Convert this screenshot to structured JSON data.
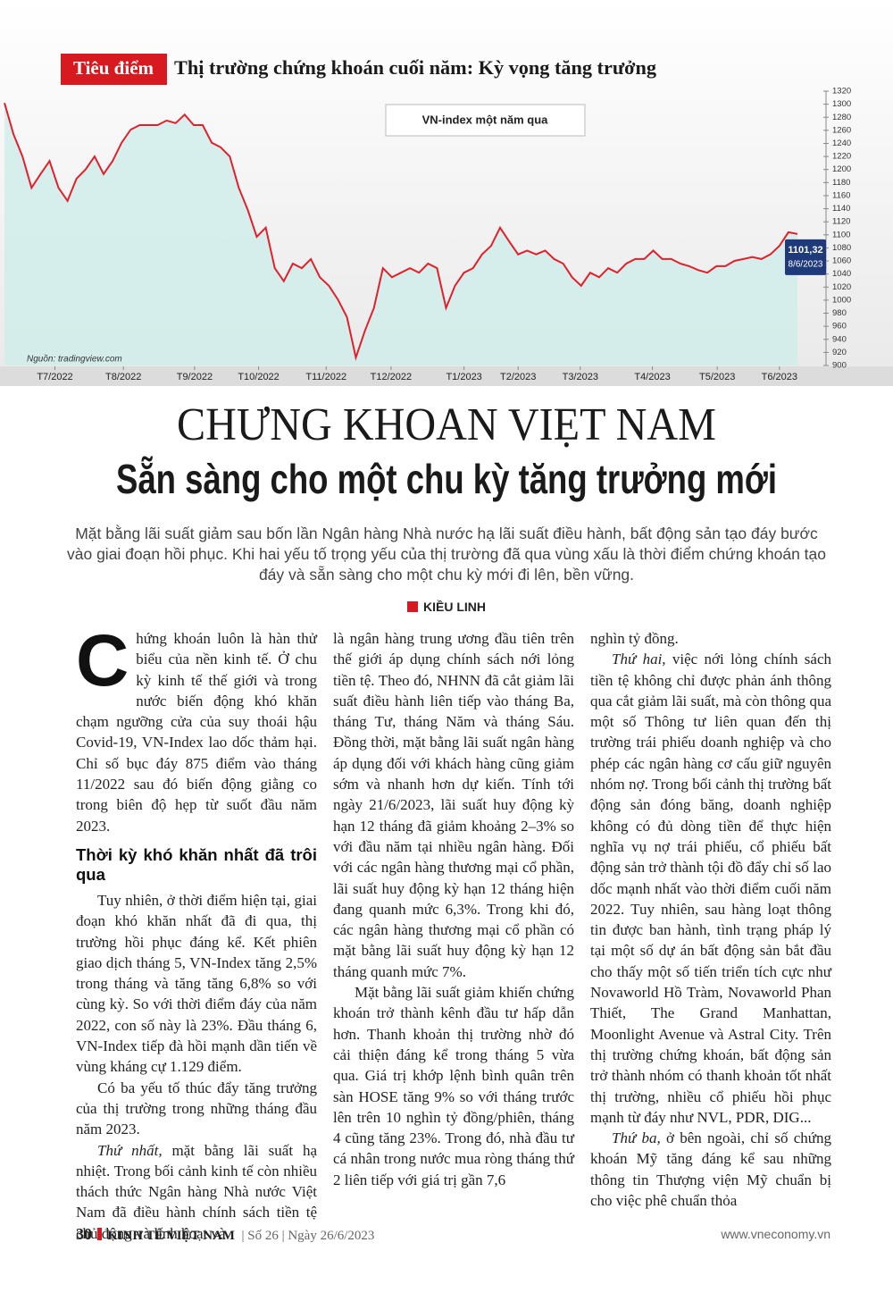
{
  "header": {
    "section": "Tiêu điểm",
    "title": "Thị trường chứng khoán cuối năm: Kỳ vọng tăng trưởng"
  },
  "chart_data": {
    "type": "line",
    "title": "VN-index một năm qua",
    "source": "Nguồn: tradingview.com",
    "color": "#e0202a",
    "area_color": "#cfeeea",
    "ylim": [
      900,
      1320
    ],
    "yticks": [
      900,
      920,
      940,
      960,
      980,
      1000,
      1020,
      1040,
      1060,
      1080,
      1100,
      1120,
      1140,
      1160,
      1180,
      1200,
      1220,
      1240,
      1260,
      1280,
      1300,
      1320
    ],
    "xlim": [
      0,
      88
    ],
    "xticks": [
      {
        "value": 5.6,
        "label": "T7/2022"
      },
      {
        "value": 13.2,
        "label": "T8/2022"
      },
      {
        "value": 21.1,
        "label": "T9/2022"
      },
      {
        "value": 28.2,
        "label": "T10/2022"
      },
      {
        "value": 35.7,
        "label": "T11/2022"
      },
      {
        "value": 42.9,
        "label": "T12/2022"
      },
      {
        "value": 51,
        "label": "T1/2023"
      },
      {
        "value": 57,
        "label": "T2/2023"
      },
      {
        "value": 63.9,
        "label": "T3/2023"
      },
      {
        "value": 71.9,
        "label": "T4/2023"
      },
      {
        "value": 79.1,
        "label": "T5/2023"
      },
      {
        "value": 86,
        "label": "T6/2023"
      }
    ],
    "values": [
      1302,
      1254,
      1220,
      1172,
      1193,
      1213,
      1172,
      1152,
      1186,
      1200,
      1220,
      1193,
      1213,
      1241,
      1261,
      1268,
      1268,
      1268,
      1275,
      1271,
      1284,
      1268,
      1268,
      1241,
      1234,
      1220,
      1172,
      1138,
      1097,
      1111,
      1049,
      1029,
      1056,
      1049,
      1063,
      1035,
      1022,
      1001,
      974,
      912,
      953,
      988,
      1049,
      1035,
      1042,
      1049,
      1042,
      1056,
      1049,
      988,
      1022,
      1042,
      1049,
      1070,
      1083,
      1111,
      1090,
      1070,
      1076,
      1070,
      1076,
      1063,
      1056,
      1035,
      1022,
      1042,
      1035,
      1049,
      1042,
      1056,
      1063,
      1063,
      1076,
      1063,
      1063,
      1056,
      1052,
      1046,
      1042,
      1052,
      1052,
      1060,
      1063,
      1066,
      1063,
      1070,
      1083,
      1104,
      1101.32
    ],
    "value_labels": [
      null,
      null,
      null,
      null,
      null,
      null,
      null,
      null,
      null,
      null,
      null,
      null,
      null,
      null,
      null,
      null,
      null,
      null,
      null,
      null,
      null,
      null,
      null,
      null,
      null,
      null,
      null,
      null,
      null,
      null,
      null,
      null,
      null,
      null,
      null,
      null,
      null,
      null,
      null,
      null,
      null,
      null,
      null,
      null,
      null,
      null,
      null,
      null,
      null,
      null,
      null,
      null,
      null,
      null,
      null,
      null,
      null,
      null,
      null,
      null,
      null,
      null,
      null,
      null,
      null,
      null,
      null,
      null,
      null,
      null,
      null,
      null,
      null,
      null,
      null,
      null,
      null,
      null,
      null,
      null,
      null,
      null,
      null,
      null,
      null,
      null,
      null,
      null,
      "1101,32"
    ],
    "last_date": "8/6/2023"
  },
  "headline": [
    "CHỨNG KHOÁN VIỆT NAM",
    "Sẵn sàng cho một chu kỳ tăng trưởng mới"
  ],
  "lead": "Mặt bằng lãi suất giảm sau bốn lần Ngân hàng Nhà nước hạ lãi suất điều hành, bất động sản tạo đáy bước vào giai đoạn hồi phục. Khi hai yếu tố trọng yếu của thị trường đã qua vùng xấu là thời điểm chứng khoán tạo đáy và sẵn sàng cho một chu kỳ mới đi lên, bền vững.",
  "author": "KIỀU LINH",
  "columns": [
    [
      {
        "dropcap": "C",
        "text": "hứng khoán luôn là hàn thử biểu của nền kinh tế. Ở chu kỳ kinh tế thế giới và trong nước biến động khó khăn chạm ngưỡng cửa của suy thoái hậu Covid-19, VN-Index lao dốc thảm hại. Chỉ số bục đáy 875 điểm vào tháng 11/2022 sau đó biến động giằng co trong biên độ hẹp từ suốt đầu năm 2023."
      },
      {
        "heading": "Thời kỳ khó khăn nhất đã trôi qua"
      },
      {
        "text": "Tuy nhiên, ở thời điểm hiện tại, giai đoạn khó khăn nhất đã đi qua, thị trường hồi phục đáng kể. Kết phiên giao dịch tháng 5, VN-Index tăng 2,5% trong tháng và tăng tăng 6,8% so với cùng kỳ. So với thời điểm đáy của năm 2022, con số này là 23%. Đầu tháng 6, VN-Index tiếp đà hồi mạnh dần tiến về vùng kháng cự 1.129 điểm."
      },
      {
        "text": "Có ba yếu tố thúc đẩy tăng trưởng của thị trường trong những tháng đầu năm 2023."
      },
      {
        "lead": "Thứ nhất,",
        "text": " mặt bằng lãi suất hạ nhiệt. Trong bối cảnh kinh tế còn nhiều thách thức Ngân hàng Nhà nước Việt Nam đã điều hành chính sách tiền tệ chủ động và linh hoạt và"
      }
    ],
    [
      {
        "text": "là ngân hàng trung ương đầu tiên trên thế giới áp dụng chính sách nới lỏng tiền tệ. Theo đó, NHNN đã cắt giảm lãi suất điều hành liên tiếp vào tháng Ba, tháng Tư, tháng Năm và tháng Sáu. Đồng thời, mặt bằng lãi suất ngân hàng áp dụng đối với khách hàng cũng giảm sớm và nhanh hơn dự kiến. Tính tới ngày 21/6/2023, lãi suất huy động kỳ hạn 12 tháng đã giảm khoảng 2–3% so với đầu năm tại nhiều ngân hàng. Đối với các ngân hàng thương mại cổ phần, lãi suất huy động kỳ hạn 12 tháng hiện đang quanh mức 6,3%. Trong khi đó, các ngân hàng thương mại cổ phần có mặt bằng lãi suất huy động kỳ hạn 12 tháng quanh mức 7%."
      },
      {
        "text": "Mặt bằng lãi suất giảm khiến chứng khoán trở thành kênh đầu tư hấp dẫn hơn. Thanh khoản thị trường nhờ đó cải thiện đáng kể trong tháng 5 vừa qua. Giá trị khớp lệnh bình quân trên sàn HOSE tăng 9% so với tháng trước lên trên 10 nghìn tỷ đồng/phiên, tháng 4 cũng tăng 23%. Trong đó, nhà đầu tư cá nhân trong nước mua ròng tháng thứ 2 liên tiếp với giá trị gần 7,6"
      }
    ],
    [
      {
        "text": "nghìn tỷ đồng."
      },
      {
        "lead": "Thứ hai,",
        "text": " việc nới lỏng chính sách tiền tệ không chỉ được phản ánh thông qua cắt giảm lãi suất, mà còn thông qua một số Thông tư liên quan đến thị trường trái phiếu doanh nghiệp và cho phép các ngân hàng cơ cấu giữ nguyên nhóm nợ. Trong bối cảnh thị trường bất động sản đóng băng, doanh nghiệp không có đủ dòng tiền để thực hiện nghĩa vụ nợ trái phiếu, cổ phiếu bất động sản trở thành tội đồ đẩy chỉ số lao dốc mạnh nhất vào thời điểm cuối năm 2022. Tuy nhiên, sau hàng loạt thông tin được ban hành, tình trạng pháp lý tại một số dự án bất động sản bắt đầu cho thấy một số tiến triển tích cực như Novaworld Hồ Tràm, Novaworld Phan Thiết, The Grand Manhattan, Moonlight Avenue và Astral City. Trên thị trường chứng khoán, bất động sản trở thành nhóm có thanh khoản tốt nhất thị trường, nhiều cổ phiếu hồi phục mạnh từ đáy như NVL, PDR, DIG..."
      },
      {
        "lead": "Thứ ba,",
        "text": " ở bên ngoài, chỉ số chứng khoán Mỹ tăng đáng kể sau những thông tin Thượng viện Mỹ chuẩn bị cho việc phê chuẩn thỏa"
      }
    ]
  ],
  "footer": {
    "page": "30",
    "magazine": "KINH TẾ VIỆT NAM",
    "issue": "Số 26",
    "date": "Ngày 26/6/2023",
    "website": "www.vneconomy.vn"
  }
}
